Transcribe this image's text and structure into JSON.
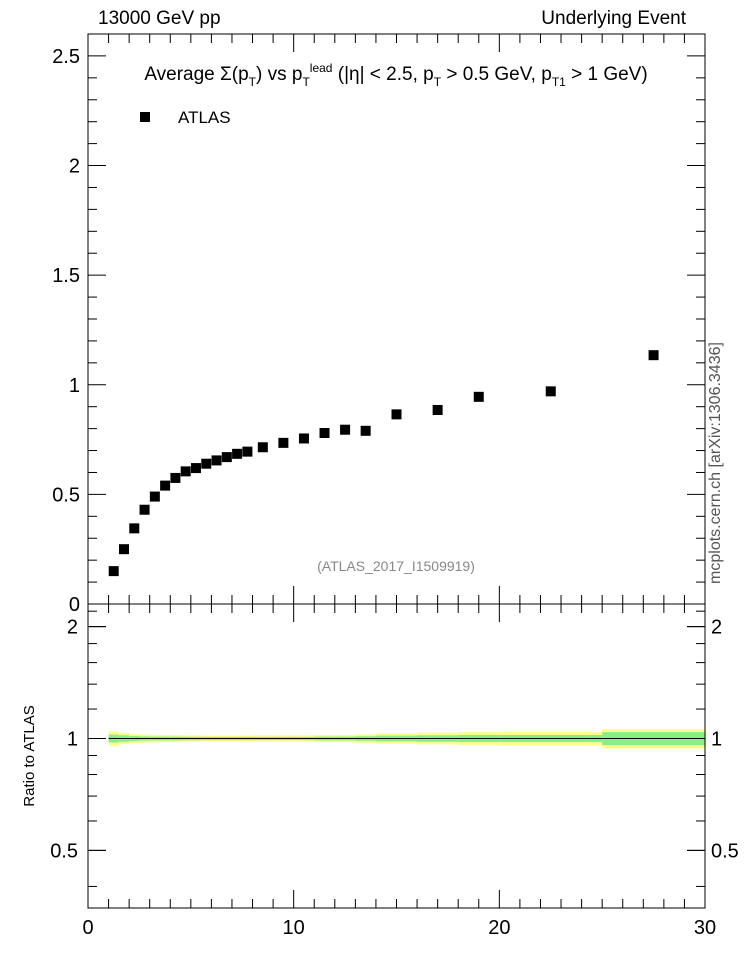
{
  "header": {
    "left": "13000 GeV pp",
    "right": "Underlying Event"
  },
  "side_label": "mcplots.cern.ch [arXiv:1306.3436]",
  "chart_data": [
    {
      "type": "scatter",
      "title": "Average Σ(p_T) vs p_T^lead (|η| < 2.5, p_T > 0.5 GeV, p_T1 > 1 GeV)",
      "watermark": "(ATLAS_2017_I1509919)",
      "legend": {
        "entries": [
          "ATLAS"
        ],
        "placement": "top-left"
      },
      "xlim": [
        0,
        30
      ],
      "ylim": [
        0,
        2.6
      ],
      "yticks": [
        0,
        0.5,
        1,
        1.5,
        2,
        2.5
      ],
      "ytick_labels": [
        "0",
        "0.5",
        "1",
        "1.5",
        "2",
        "2.5"
      ],
      "series": [
        {
          "name": "ATLAS",
          "x": [
            1.25,
            1.75,
            2.25,
            2.75,
            3.25,
            3.75,
            4.25,
            4.75,
            5.25,
            5.75,
            6.25,
            6.75,
            7.25,
            7.75,
            8.5,
            9.5,
            10.5,
            11.5,
            12.5,
            13.5,
            15,
            17,
            19,
            22.5,
            27.5
          ],
          "y": [
            0.15,
            0.25,
            0.345,
            0.43,
            0.49,
            0.54,
            0.575,
            0.605,
            0.62,
            0.64,
            0.655,
            0.67,
            0.685,
            0.695,
            0.715,
            0.735,
            0.755,
            0.78,
            0.795,
            0.79,
            0.865,
            0.885,
            0.945,
            0.97,
            1.135
          ]
        }
      ],
      "grid": false
    },
    {
      "type": "area",
      "ylabel": "Ratio to ATLAS",
      "xlim": [
        0,
        30
      ],
      "ylim": [
        0.35,
        2.3
      ],
      "xticks": [
        0,
        10,
        20,
        30
      ],
      "xtick_labels": [
        "0",
        "10",
        "20",
        "30"
      ],
      "yticks": [
        0.5,
        1,
        2
      ],
      "ytick_labels": [
        "0.5",
        "1",
        "2"
      ],
      "reference": 1,
      "bins": [
        1,
        1.5,
        2,
        2.5,
        3,
        3.5,
        4,
        4.5,
        5,
        5.5,
        6,
        6.5,
        7,
        7.5,
        8,
        9,
        10,
        11,
        12,
        13,
        14,
        16,
        18,
        20,
        25,
        30
      ],
      "stat_band": [
        0.025,
        0.02,
        0.015,
        0.013,
        0.012,
        0.012,
        0.012,
        0.011,
        0.011,
        0.01,
        0.01,
        0.01,
        0.01,
        0.01,
        0.01,
        0.01,
        0.01,
        0.012,
        0.012,
        0.014,
        0.018,
        0.02,
        0.022,
        0.022,
        0.04
      ],
      "total_band": [
        0.045,
        0.035,
        0.028,
        0.025,
        0.022,
        0.022,
        0.022,
        0.02,
        0.02,
        0.018,
        0.018,
        0.018,
        0.018,
        0.018,
        0.02,
        0.02,
        0.02,
        0.022,
        0.022,
        0.026,
        0.032,
        0.036,
        0.04,
        0.042,
        0.06
      ],
      "band_colors": {
        "total": "#ffff88",
        "stat": "#88ee88"
      },
      "grid": false
    }
  ],
  "colors": {
    "marker": "#000000",
    "watermark": "#888888",
    "side_label": "#555555"
  }
}
